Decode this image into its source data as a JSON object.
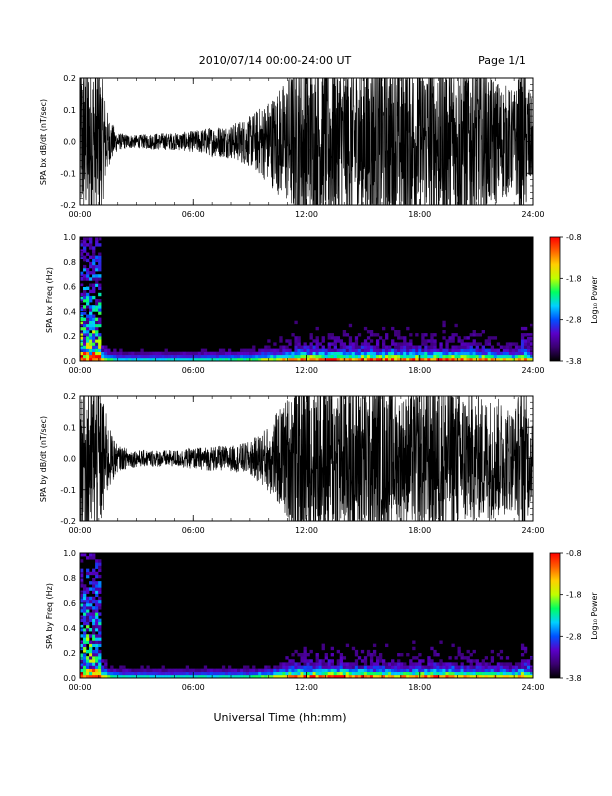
{
  "header": {
    "title": "2010/07/14  00:00-24:00 UT",
    "page": "Page 1/1"
  },
  "colors": {
    "trace": "#000000",
    "colorbar_stops": [
      "#000000",
      "#3a0070",
      "#5a00c8",
      "#0050ff",
      "#00d0ff",
      "#00ff60",
      "#c0ff00",
      "#ffd000",
      "#ff6000",
      "#ff0000"
    ]
  },
  "xlabel": "Universal Time (hh:mm)",
  "chart_data": [
    {
      "type": "line",
      "title": "",
      "ylabel": "SPA bx dB/dt (nT/sec)",
      "xlim": [
        0,
        24
      ],
      "ylim": [
        -0.2,
        0.2
      ],
      "x_tick_labels": [
        "00:00",
        "06:00",
        "12:00",
        "18:00",
        "24:00"
      ],
      "y_tick_labels": [
        "0.2",
        "0.1",
        "0.0",
        "-0.1",
        "-0.2"
      ],
      "series": [
        {
          "x": [
            0,
            0.5,
            1,
            1.5,
            2,
            3,
            4,
            5,
            6,
            7,
            8,
            9,
            10,
            11,
            11.5,
            12,
            13,
            14,
            15,
            16,
            17,
            18,
            19,
            20,
            21,
            22,
            23,
            23.5,
            24
          ],
          "amplitude": [
            0.2,
            0.2,
            0.2,
            0.06,
            0.02,
            0.015,
            0.02,
            0.02,
            0.025,
            0.035,
            0.04,
            0.06,
            0.1,
            0.15,
            0.2,
            0.2,
            0.2,
            0.2,
            0.2,
            0.2,
            0.2,
            0.2,
            0.2,
            0.2,
            0.2,
            0.15,
            0.12,
            0.2,
            0.08
          ]
        }
      ]
    },
    {
      "type": "heatmap",
      "title": "",
      "ylabel": "SPA bx Freq (Hz)",
      "xlim": [
        0,
        24
      ],
      "ylim": [
        0,
        1
      ],
      "x_tick_labels": [
        "00:00",
        "06:00",
        "12:00",
        "18:00",
        "24:00"
      ],
      "y_tick_labels": [
        "1.0",
        "0.8",
        "0.6",
        "0.4",
        "0.2",
        "0.0"
      ],
      "colorbar": {
        "label": "Log₁₀ Power",
        "ticks": [
          "-0.8",
          "-1.8",
          "-2.8",
          "-3.8"
        ],
        "range": [
          -3.8,
          -0.8
        ]
      }
    },
    {
      "type": "line",
      "title": "",
      "ylabel": "SPA by dB/dt (nT/sec)",
      "xlim": [
        0,
        24
      ],
      "ylim": [
        -0.2,
        0.2
      ],
      "x_tick_labels": [
        "00:00",
        "06:00",
        "12:00",
        "18:00",
        "24:00"
      ],
      "y_tick_labels": [
        "0.2",
        "0.1",
        "0.0",
        "-0.1",
        "-0.2"
      ],
      "series": [
        {
          "x": [
            0,
            0.5,
            1,
            1.5,
            2,
            3,
            4,
            5,
            6,
            7,
            8,
            9,
            10,
            11,
            11.5,
            12,
            13,
            14,
            15,
            16,
            17,
            18,
            19,
            20,
            21,
            22,
            23,
            23.5,
            24
          ],
          "amplitude": [
            0.2,
            0.2,
            0.2,
            0.08,
            0.03,
            0.02,
            0.02,
            0.02,
            0.025,
            0.03,
            0.03,
            0.04,
            0.08,
            0.15,
            0.2,
            0.2,
            0.2,
            0.2,
            0.2,
            0.18,
            0.15,
            0.18,
            0.2,
            0.18,
            0.15,
            0.15,
            0.12,
            0.2,
            0.08
          ]
        }
      ]
    },
    {
      "type": "heatmap",
      "title": "",
      "ylabel": "SPA by Freq (Hz)",
      "xlim": [
        0,
        24
      ],
      "ylim": [
        0,
        1
      ],
      "x_tick_labels": [
        "00:00",
        "06:00",
        "12:00",
        "18:00",
        "24:00"
      ],
      "y_tick_labels": [
        "1.0",
        "0.8",
        "0.6",
        "0.4",
        "0.2",
        "0.0"
      ],
      "colorbar": {
        "label": "Log₁₀ Power",
        "ticks": [
          "-0.8",
          "-1.8",
          "-2.8",
          "-3.8"
        ],
        "range": [
          -3.8,
          -0.8
        ]
      }
    }
  ]
}
